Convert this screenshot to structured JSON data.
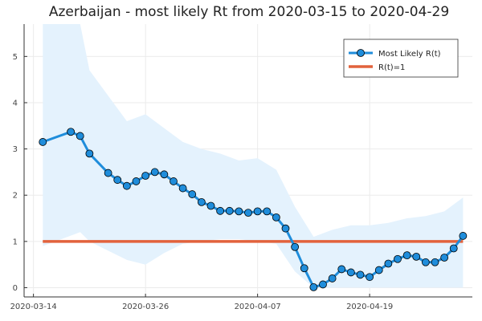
{
  "chart_data": {
    "type": "line",
    "title": "Azerbaijan - most likely Rt from 2020-03-15 to 2020-04-29",
    "xlabel": "",
    "ylabel": "",
    "x_start": "2020-03-15",
    "x_end": "2020-04-29",
    "xlim": [
      "2020-03-13",
      "2020-04-30"
    ],
    "ylim": [
      -0.2,
      5.7
    ],
    "x_ticks": [
      "2020-03-14",
      "2020-03-26",
      "2020-04-07",
      "2020-04-19"
    ],
    "y_ticks": [
      0,
      1,
      2,
      3,
      4,
      5
    ],
    "grid": true,
    "legend_position": "top-right",
    "colors": {
      "most_likely": "#1f8ddb",
      "reference": "#e2623c",
      "band": "#e4f2fd"
    },
    "series": [
      {
        "name": "Most Likely R(t)",
        "x": [
          "2020-03-15",
          "2020-03-18",
          "2020-03-19",
          "2020-03-20",
          "2020-03-22",
          "2020-03-23",
          "2020-03-24",
          "2020-03-25",
          "2020-03-26",
          "2020-03-27",
          "2020-03-28",
          "2020-03-29",
          "2020-03-30",
          "2020-03-31",
          "2020-04-01",
          "2020-04-02",
          "2020-04-03",
          "2020-04-04",
          "2020-04-05",
          "2020-04-06",
          "2020-04-07",
          "2020-04-08",
          "2020-04-09",
          "2020-04-10",
          "2020-04-11",
          "2020-04-12",
          "2020-04-13",
          "2020-04-14",
          "2020-04-15",
          "2020-04-16",
          "2020-04-17",
          "2020-04-18",
          "2020-04-19",
          "2020-04-20",
          "2020-04-21",
          "2020-04-22",
          "2020-04-23",
          "2020-04-24",
          "2020-04-25",
          "2020-04-26",
          "2020-04-27",
          "2020-04-28",
          "2020-04-29"
        ],
        "values": [
          3.15,
          3.37,
          3.28,
          2.9,
          2.48,
          2.33,
          2.2,
          2.3,
          2.42,
          2.5,
          2.45,
          2.3,
          2.15,
          2.02,
          1.85,
          1.77,
          1.66,
          1.66,
          1.65,
          1.62,
          1.65,
          1.65,
          1.52,
          1.28,
          0.88,
          0.42,
          0.01,
          0.07,
          0.2,
          0.4,
          0.33,
          0.28,
          0.23,
          0.38,
          0.52,
          0.62,
          0.7,
          0.67,
          0.55,
          0.55,
          0.65,
          0.85,
          1.12
        ]
      },
      {
        "name": "R(t)=1",
        "x": [
          "2020-03-15",
          "2020-04-29"
        ],
        "values": [
          1,
          1
        ]
      }
    ],
    "band": {
      "x": [
        "2020-03-15",
        "2020-03-17",
        "2020-03-19",
        "2020-03-20",
        "2020-03-22",
        "2020-03-24",
        "2020-03-26",
        "2020-03-28",
        "2020-03-30",
        "2020-04-01",
        "2020-04-03",
        "2020-04-05",
        "2020-04-07",
        "2020-04-09",
        "2020-04-11",
        "2020-04-13",
        "2020-04-15",
        "2020-04-17",
        "2020-04-19",
        "2020-04-21",
        "2020-04-23",
        "2020-04-25",
        "2020-04-27",
        "2020-04-29"
      ],
      "upper": [
        5.7,
        5.7,
        5.7,
        4.7,
        4.15,
        3.6,
        3.75,
        3.45,
        3.15,
        3.0,
        2.9,
        2.75,
        2.8,
        2.55,
        1.75,
        1.1,
        1.25,
        1.35,
        1.35,
        1.4,
        1.5,
        1.55,
        1.65,
        1.95
      ],
      "lower": [
        0.9,
        1.05,
        1.2,
        1.0,
        0.8,
        0.6,
        0.5,
        0.75,
        0.95,
        1.0,
        1.05,
        1.05,
        1.0,
        0.95,
        0.35,
        0.0,
        0.0,
        0.0,
        0.0,
        0.0,
        0.0,
        0.0,
        0.0,
        0.0
      ]
    }
  }
}
